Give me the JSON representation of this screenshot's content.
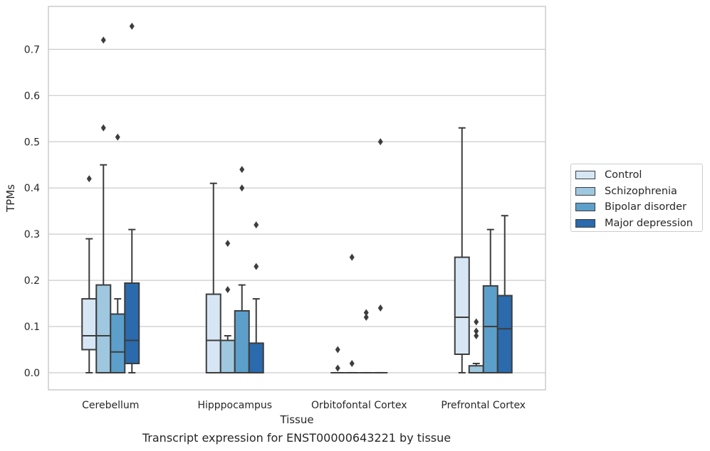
{
  "chart_data": {
    "type": "box",
    "xlabel": "Tissue",
    "ylabel": "TPMs",
    "caption": "Transcript expression for ENST00000643221 by tissue",
    "ylim": [
      -0.037,
      0.793
    ],
    "yticks": [
      0.0,
      0.1,
      0.2,
      0.3,
      0.4,
      0.5,
      0.6,
      0.7
    ],
    "ytick_labels": [
      "0.0",
      "0.1",
      "0.2",
      "0.3",
      "0.4",
      "0.5",
      "0.6",
      "0.7"
    ],
    "categories": [
      "Cerebellum",
      "Hipppocampus",
      "Orbitofontal Cortex",
      "Prefrontal Cortex"
    ],
    "grid": "horizontal",
    "legend_position": "right",
    "series": [
      {
        "name": "Control",
        "color": "#d6e6f4",
        "boxes": [
          {
            "whislo": 0.0,
            "q1": 0.05,
            "med": 0.08,
            "q3": 0.16,
            "whishi": 0.29,
            "fliers": [
              0.42
            ]
          },
          {
            "whislo": 0.0,
            "q1": 0.0,
            "med": 0.07,
            "q3": 0.17,
            "whishi": 0.41,
            "fliers": []
          },
          {
            "whislo": 0.0,
            "q1": 0.0,
            "med": 0.0,
            "q3": 0.0,
            "whishi": 0.0,
            "fliers": [
              0.01,
              0.05
            ]
          },
          {
            "whislo": 0.0,
            "q1": 0.04,
            "med": 0.12,
            "q3": 0.25,
            "whishi": 0.53,
            "fliers": []
          }
        ]
      },
      {
        "name": "Schizophrenia",
        "color": "#9fc7e0",
        "boxes": [
          {
            "whislo": 0.0,
            "q1": 0.0,
            "med": 0.08,
            "q3": 0.19,
            "whishi": 0.45,
            "fliers": [
              0.53,
              0.72
            ]
          },
          {
            "whislo": 0.0,
            "q1": 0.0,
            "med": 0.07,
            "q3": 0.07,
            "whishi": 0.08,
            "fliers": [
              0.18,
              0.28
            ]
          },
          {
            "whislo": 0.0,
            "q1": 0.0,
            "med": 0.0,
            "q3": 0.0,
            "whishi": 0.0,
            "fliers": [
              0.02,
              0.25
            ]
          },
          {
            "whislo": 0.0,
            "q1": 0.0,
            "med": 0.0,
            "q3": 0.015,
            "whishi": 0.02,
            "fliers": [
              0.08,
              0.09,
              0.11
            ]
          }
        ]
      },
      {
        "name": "Bipolar disorder",
        "color": "#5c9fcb",
        "boxes": [
          {
            "whislo": 0.0,
            "q1": 0.0,
            "med": 0.045,
            "q3": 0.127,
            "whishi": 0.16,
            "fliers": [
              0.51
            ]
          },
          {
            "whislo": 0.0,
            "q1": 0.0,
            "med": 0.0,
            "q3": 0.134,
            "whishi": 0.19,
            "fliers": [
              0.4,
              0.44
            ]
          },
          {
            "whislo": 0.0,
            "q1": 0.0,
            "med": 0.0,
            "q3": 0.0,
            "whishi": 0.0,
            "fliers": [
              0.12,
              0.13
            ]
          },
          {
            "whislo": 0.0,
            "q1": 0.0,
            "med": 0.1,
            "q3": 0.188,
            "whishi": 0.31,
            "fliers": []
          }
        ]
      },
      {
        "name": "Major depression",
        "color": "#2a6aad",
        "boxes": [
          {
            "whislo": 0.0,
            "q1": 0.02,
            "med": 0.07,
            "q3": 0.194,
            "whishi": 0.31,
            "fliers": [
              0.75
            ]
          },
          {
            "whislo": 0.0,
            "q1": 0.0,
            "med": 0.0,
            "q3": 0.064,
            "whishi": 0.16,
            "fliers": [
              0.23,
              0.32
            ]
          },
          {
            "whislo": 0.0,
            "q1": 0.0,
            "med": 0.0,
            "q3": 0.0,
            "whishi": 0.0,
            "fliers": [
              0.14,
              0.5
            ]
          },
          {
            "whislo": 0.0,
            "q1": 0.0,
            "med": 0.095,
            "q3": 0.167,
            "whishi": 0.34,
            "fliers": []
          }
        ]
      }
    ]
  }
}
